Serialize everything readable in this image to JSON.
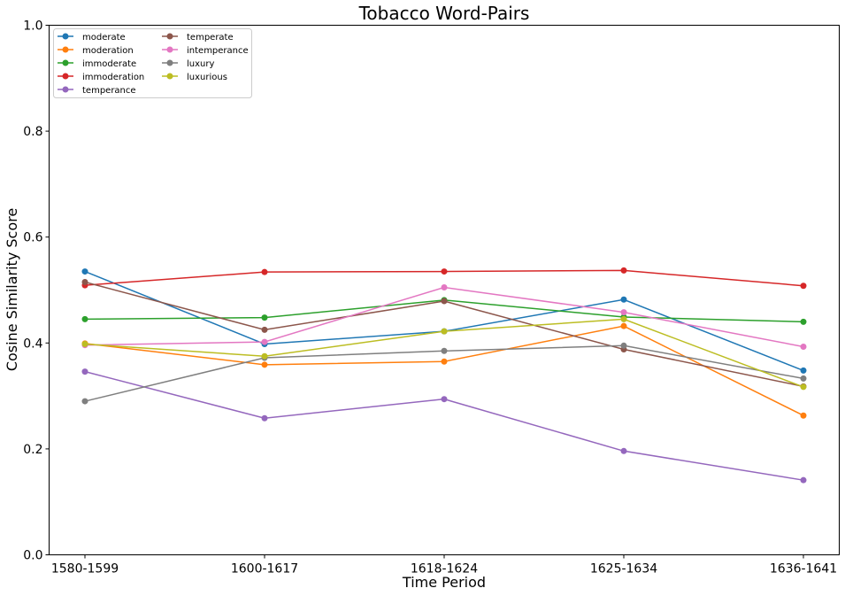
{
  "chart_data": {
    "type": "line",
    "title": "Tobacco Word-Pairs",
    "xlabel": "Time Period",
    "ylabel": "Cosine Similarity Score",
    "categories": [
      "1580-1599",
      "1600-1617",
      "1618-1624",
      "1625-1634",
      "1636-1641"
    ],
    "ylim": [
      0,
      1
    ],
    "yticks": [
      "0.0",
      "0.2",
      "0.4",
      "0.6",
      "0.8",
      "1.0"
    ],
    "grid": false,
    "legend_position": "top-left",
    "series": [
      {
        "name": "moderate",
        "color": "#1f77b4",
        "values": [
          0.535,
          0.398,
          0.422,
          0.482,
          0.348
        ]
      },
      {
        "name": "moderation",
        "color": "#ff7f0e",
        "values": [
          0.399,
          0.359,
          0.365,
          0.432,
          0.263
        ]
      },
      {
        "name": "immoderate",
        "color": "#2ca02c",
        "values": [
          0.445,
          0.448,
          0.481,
          0.449,
          0.44
        ]
      },
      {
        "name": "immoderation",
        "color": "#d62728",
        "values": [
          0.509,
          0.534,
          0.535,
          0.537,
          0.508
        ]
      },
      {
        "name": "temperance",
        "color": "#9467bd",
        "values": [
          0.346,
          0.258,
          0.294,
          0.196,
          0.141
        ]
      },
      {
        "name": "temperate",
        "color": "#8c564b",
        "values": [
          0.515,
          0.425,
          0.479,
          0.388,
          0.318
        ]
      },
      {
        "name": "intemperance",
        "color": "#e377c2",
        "values": [
          0.396,
          0.402,
          0.505,
          0.458,
          0.393
        ]
      },
      {
        "name": "luxury",
        "color": "#7f7f7f",
        "values": [
          0.29,
          0.372,
          0.385,
          0.395,
          0.333
        ]
      },
      {
        "name": "luxurious",
        "color": "#bcbd22",
        "values": [
          0.398,
          0.375,
          0.422,
          0.445,
          0.317
        ]
      }
    ]
  }
}
